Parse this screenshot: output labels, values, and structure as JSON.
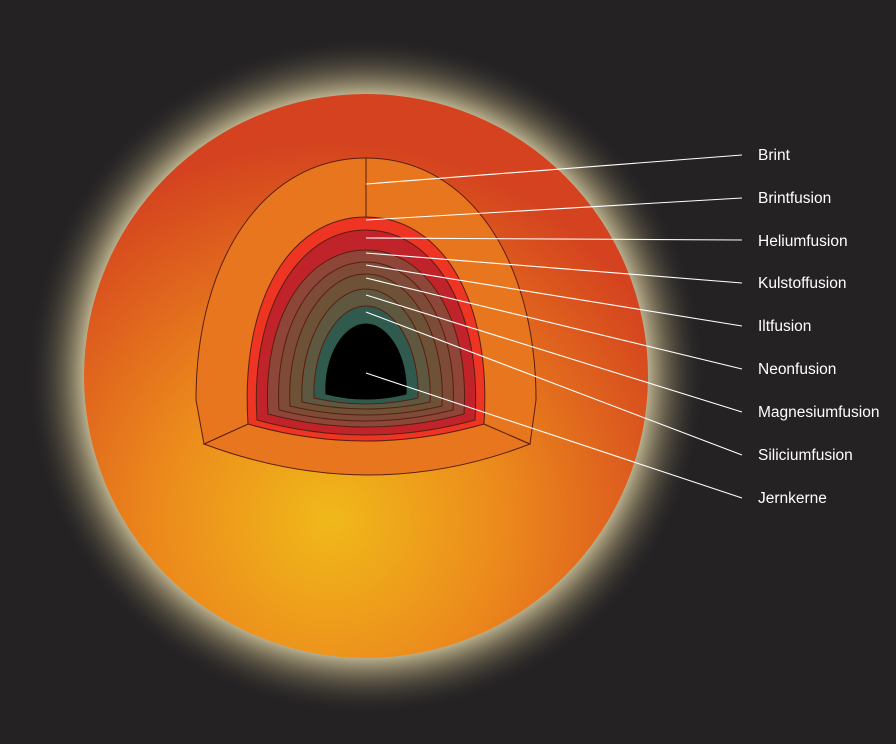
{
  "diagram": {
    "layers": [
      {
        "key": "brint",
        "label": "Brint",
        "color": "#E8761E"
      },
      {
        "key": "brintfusion",
        "label": "Brintfusion",
        "color": "#EE3524"
      },
      {
        "key": "heliumfusion",
        "label": "Heliumfusion",
        "color": "#C1232B"
      },
      {
        "key": "kulstoffusion",
        "label": "Kulstoffusion",
        "color": "#8D4638"
      },
      {
        "key": "iltfusion",
        "label": "Iltfusion",
        "color": "#7E4B38"
      },
      {
        "key": "neonfusion",
        "label": "Neonfusion",
        "color": "#6E5238"
      },
      {
        "key": "magnesiumfusion",
        "label": "Magnesiumfusion",
        "color": "#5E5840"
      },
      {
        "key": "siliciumfusion",
        "label": "Siliciumfusion",
        "color": "#2F5A4D"
      },
      {
        "key": "jernkerne",
        "label": "Jernkerne",
        "color": "#000000"
      }
    ],
    "colors": {
      "background": "#242223",
      "star_center": "#F0B21A",
      "star_edge": "#DE4B1E",
      "glow": "#FFF2B0"
    }
  }
}
